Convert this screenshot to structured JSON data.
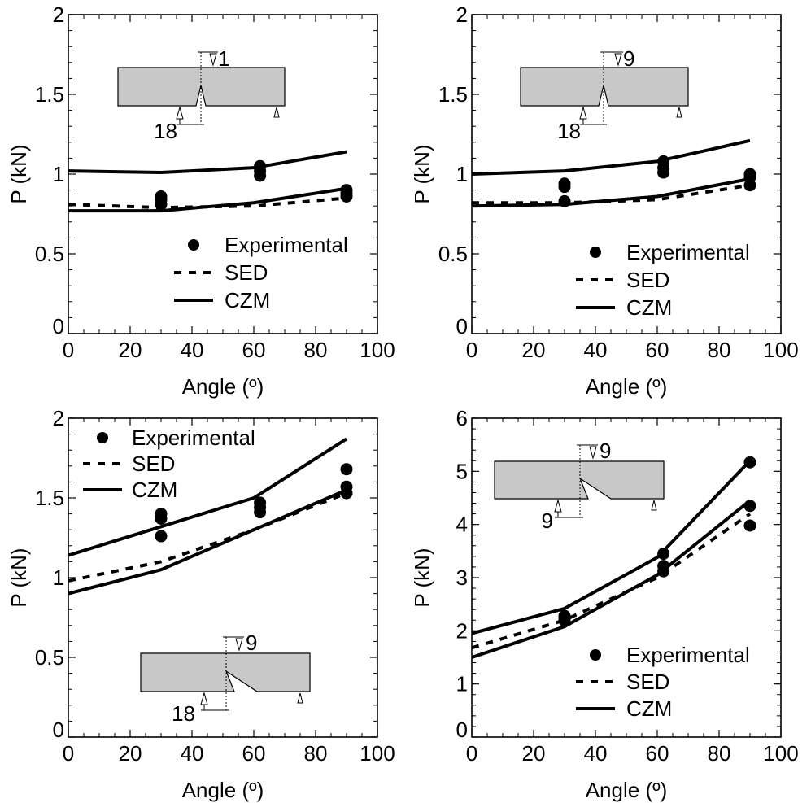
{
  "chart_data": [
    {
      "type": "scatter",
      "xlabel": "Angle (º)",
      "ylabel": "P (kN)",
      "xlim": [
        0,
        100
      ],
      "ylim": [
        0,
        2
      ],
      "xticks": [
        "0",
        "20",
        "40",
        "60",
        "80",
        "100"
      ],
      "yticks": [
        "0",
        "0.5",
        "1",
        "1.5",
        "2"
      ],
      "legend_entries": [
        "Experimental",
        "SED",
        "CZM"
      ],
      "legend_position": "bottom-right",
      "inset_labels": {
        "top": "1",
        "bottom": "18"
      },
      "series": [
        {
          "name": "Experimental",
          "kind": "points",
          "x": [
            30,
            30,
            30,
            62,
            62,
            62,
            90,
            90,
            90
          ],
          "y": [
            0.86,
            0.84,
            0.81,
            1.05,
            1.02,
            0.99,
            0.9,
            0.88,
            0.86
          ]
        },
        {
          "name": "SED",
          "kind": "dashed",
          "x": [
            0,
            30,
            60,
            90
          ],
          "y": [
            0.81,
            0.79,
            0.8,
            0.85
          ]
        },
        {
          "name": "CZM",
          "kind": "solid",
          "x": [
            0,
            30,
            60,
            90
          ],
          "y": [
            0.77,
            0.77,
            0.82,
            0.91
          ]
        },
        {
          "name": "CZM",
          "kind": "solid",
          "x": [
            0,
            30,
            60,
            90
          ],
          "y": [
            1.02,
            1.01,
            1.04,
            1.14
          ]
        }
      ]
    },
    {
      "type": "scatter",
      "xlabel": "Angle (º)",
      "ylabel": "P (kN)",
      "xlim": [
        0,
        100
      ],
      "ylim": [
        0,
        2
      ],
      "xticks": [
        "0",
        "20",
        "40",
        "60",
        "80",
        "100"
      ],
      "yticks": [
        "0",
        "0.5",
        "1",
        "1.5",
        "2"
      ],
      "legend_entries": [
        "Experimental",
        "SED",
        "CZM"
      ],
      "legend_position": "bottom-right",
      "inset_labels": {
        "top": "9",
        "bottom": "18"
      },
      "series": [
        {
          "name": "Experimental",
          "kind": "points",
          "x": [
            30,
            30,
            30,
            62,
            62,
            62,
            90,
            90,
            90
          ],
          "y": [
            0.94,
            0.92,
            0.83,
            1.08,
            1.04,
            1.01,
            1.0,
            0.98,
            0.93
          ]
        },
        {
          "name": "SED",
          "kind": "dashed",
          "x": [
            0,
            30,
            60,
            90
          ],
          "y": [
            0.82,
            0.82,
            0.84,
            0.93
          ]
        },
        {
          "name": "CZM",
          "kind": "solid",
          "x": [
            0,
            30,
            60,
            90
          ],
          "y": [
            0.8,
            0.81,
            0.86,
            0.97
          ]
        },
        {
          "name": "CZM",
          "kind": "solid",
          "x": [
            0,
            30,
            60,
            90
          ],
          "y": [
            1.0,
            1.02,
            1.08,
            1.21
          ]
        }
      ]
    },
    {
      "type": "scatter",
      "xlabel": "Angle (º)",
      "ylabel": "P (kN)",
      "xlim": [
        0,
        100
      ],
      "ylim": [
        0,
        2
      ],
      "xticks": [
        "0",
        "20",
        "40",
        "60",
        "80",
        "100"
      ],
      "yticks": [
        "0",
        "0.5",
        "1",
        "1.5",
        "2"
      ],
      "legend_entries": [
        "Experimental",
        "SED",
        "CZM"
      ],
      "legend_position": "top-left",
      "inset_labels": {
        "top": "9",
        "bottom": "18"
      },
      "series": [
        {
          "name": "Experimental",
          "kind": "points",
          "x": [
            30,
            30,
            30,
            62,
            62,
            62,
            90,
            90,
            90
          ],
          "y": [
            1.4,
            1.37,
            1.26,
            1.47,
            1.44,
            1.41,
            1.68,
            1.57,
            1.53
          ]
        },
        {
          "name": "SED",
          "kind": "dashed",
          "x": [
            0,
            30,
            60,
            90
          ],
          "y": [
            0.98,
            1.1,
            1.3,
            1.53
          ]
        },
        {
          "name": "CZM",
          "kind": "solid",
          "x": [
            0,
            30,
            60,
            90
          ],
          "y": [
            0.9,
            1.05,
            1.3,
            1.55
          ]
        },
        {
          "name": "CZM",
          "kind": "solid",
          "x": [
            0,
            30,
            60,
            90
          ],
          "y": [
            1.14,
            1.32,
            1.5,
            1.87
          ]
        }
      ]
    },
    {
      "type": "scatter",
      "xlabel": "Angle (º)",
      "ylabel": "P (kN)",
      "xlim": [
        0,
        100
      ],
      "ylim": [
        0,
        6
      ],
      "xticks": [
        "0",
        "20",
        "40",
        "60",
        "80",
        "100"
      ],
      "yticks": [
        "0",
        "1",
        "2",
        "3",
        "4",
        "5",
        "6"
      ],
      "legend_entries": [
        "Experimental",
        "SED",
        "CZM"
      ],
      "legend_position": "bottom-right",
      "inset_labels": {
        "top": "9",
        "bottom": "9"
      },
      "series": [
        {
          "name": "Experimental",
          "kind": "points",
          "x": [
            30,
            30,
            30,
            62,
            62,
            62,
            90,
            90,
            90
          ],
          "y": [
            2.28,
            2.24,
            2.19,
            3.45,
            3.22,
            3.12,
            5.17,
            4.35,
            3.98
          ]
        },
        {
          "name": "SED",
          "kind": "dashed",
          "x": [
            0,
            30,
            60,
            90
          ],
          "y": [
            1.68,
            2.2,
            3.0,
            4.2
          ]
        },
        {
          "name": "CZM",
          "kind": "solid",
          "x": [
            0,
            30,
            60,
            90
          ],
          "y": [
            1.5,
            2.08,
            3.05,
            4.45
          ]
        },
        {
          "name": "CZM",
          "kind": "solid",
          "x": [
            0,
            30,
            60,
            90
          ],
          "y": [
            1.95,
            2.42,
            3.38,
            5.2
          ]
        }
      ]
    }
  ]
}
